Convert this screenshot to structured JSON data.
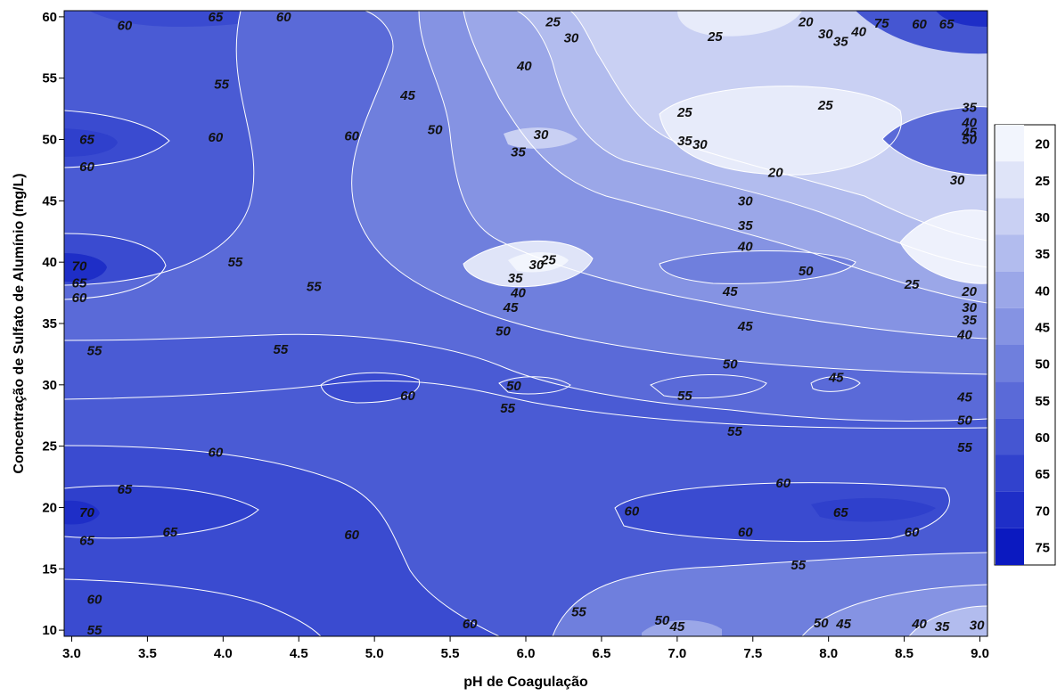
{
  "chart_data": {
    "type": "contour",
    "title": "",
    "xlabel": "pH de Coagulação",
    "ylabel": "Concentração de Sulfato de Alumínio (mg/L)",
    "xlim": [
      2.95,
      9.05
    ],
    "ylim": [
      9.5,
      60.5
    ],
    "xticks": [
      "3.0",
      "3.5",
      "4.0",
      "4.5",
      "5.0",
      "5.5",
      "6.0",
      "6.5",
      "7.0",
      "7.5",
      "8.0",
      "8.5",
      "9.0"
    ],
    "yticks": [
      "10",
      "15",
      "20",
      "25",
      "30",
      "35",
      "40",
      "45",
      "50",
      "55",
      "60"
    ],
    "legend": {
      "position": "right",
      "levels": [
        "20",
        "25",
        "30",
        "35",
        "40",
        "45",
        "50",
        "55",
        "60",
        "65",
        "70",
        "75"
      ],
      "colors": [
        "#f2f5fd",
        "#dfe4f8",
        "#c9d0f3",
        "#b2bcee",
        "#9ba7e8",
        "#8593e3",
        "#6f7fdd",
        "#5a6ad8",
        "#4556d2",
        "#3142cd",
        "#1e2ec7",
        "#0b19c0"
      ]
    },
    "contour_labels": [
      {
        "x": 3.35,
        "y": 59.3,
        "value": "60"
      },
      {
        "x": 3.95,
        "y": 60.0,
        "value": "65"
      },
      {
        "x": 4.4,
        "y": 60.0,
        "value": "60"
      },
      {
        "x": 6.18,
        "y": 59.6,
        "value": "25"
      },
      {
        "x": 6.3,
        "y": 58.3,
        "value": "30"
      },
      {
        "x": 7.25,
        "y": 58.4,
        "value": "25"
      },
      {
        "x": 7.85,
        "y": 59.6,
        "value": "20"
      },
      {
        "x": 7.98,
        "y": 58.6,
        "value": "30"
      },
      {
        "x": 8.08,
        "y": 58.0,
        "value": "35"
      },
      {
        "x": 8.2,
        "y": 58.8,
        "value": "40"
      },
      {
        "x": 8.35,
        "y": 59.5,
        "value": "75"
      },
      {
        "x": 8.6,
        "y": 59.4,
        "value": "60"
      },
      {
        "x": 8.78,
        "y": 59.4,
        "value": "65"
      },
      {
        "x": 5.99,
        "y": 56.0,
        "value": "40"
      },
      {
        "x": 3.99,
        "y": 54.5,
        "value": "55"
      },
      {
        "x": 5.22,
        "y": 53.6,
        "value": "45"
      },
      {
        "x": 5.4,
        "y": 50.8,
        "value": "50"
      },
      {
        "x": 7.05,
        "y": 52.2,
        "value": "25"
      },
      {
        "x": 7.98,
        "y": 52.8,
        "value": "25"
      },
      {
        "x": 8.93,
        "y": 52.6,
        "value": "35"
      },
      {
        "x": 8.93,
        "y": 51.4,
        "value": "40"
      },
      {
        "x": 8.93,
        "y": 50.6,
        "value": "45"
      },
      {
        "x": 8.93,
        "y": 50.0,
        "value": "50"
      },
      {
        "x": 3.1,
        "y": 50.0,
        "value": "65"
      },
      {
        "x": 3.1,
        "y": 47.8,
        "value": "60"
      },
      {
        "x": 3.95,
        "y": 50.2,
        "value": "60"
      },
      {
        "x": 4.85,
        "y": 50.3,
        "value": "60"
      },
      {
        "x": 6.1,
        "y": 50.4,
        "value": "30"
      },
      {
        "x": 5.95,
        "y": 49.0,
        "value": "35"
      },
      {
        "x": 7.05,
        "y": 49.9,
        "value": "35"
      },
      {
        "x": 7.15,
        "y": 49.6,
        "value": "30"
      },
      {
        "x": 7.65,
        "y": 47.3,
        "value": "20"
      },
      {
        "x": 8.85,
        "y": 46.7,
        "value": "30"
      },
      {
        "x": 7.45,
        "y": 45.0,
        "value": "30"
      },
      {
        "x": 7.45,
        "y": 43.0,
        "value": "35"
      },
      {
        "x": 7.45,
        "y": 41.3,
        "value": "40"
      },
      {
        "x": 6.15,
        "y": 40.2,
        "value": "25"
      },
      {
        "x": 6.07,
        "y": 39.8,
        "value": "30"
      },
      {
        "x": 5.93,
        "y": 38.7,
        "value": "35"
      },
      {
        "x": 5.95,
        "y": 37.5,
        "value": "40"
      },
      {
        "x": 5.9,
        "y": 36.3,
        "value": "45"
      },
      {
        "x": 3.05,
        "y": 39.7,
        "value": "70"
      },
      {
        "x": 3.05,
        "y": 38.3,
        "value": "65"
      },
      {
        "x": 3.05,
        "y": 37.1,
        "value": "60"
      },
      {
        "x": 4.08,
        "y": 40.0,
        "value": "55"
      },
      {
        "x": 4.6,
        "y": 38.0,
        "value": "55"
      },
      {
        "x": 7.35,
        "y": 37.6,
        "value": "45"
      },
      {
        "x": 7.85,
        "y": 39.3,
        "value": "50"
      },
      {
        "x": 8.55,
        "y": 38.2,
        "value": "25"
      },
      {
        "x": 8.93,
        "y": 37.6,
        "value": "20"
      },
      {
        "x": 8.93,
        "y": 36.3,
        "value": "30"
      },
      {
        "x": 8.93,
        "y": 35.3,
        "value": "35"
      },
      {
        "x": 5.85,
        "y": 34.4,
        "value": "50"
      },
      {
        "x": 7.45,
        "y": 34.8,
        "value": "45"
      },
      {
        "x": 8.9,
        "y": 34.1,
        "value": "40"
      },
      {
        "x": 3.15,
        "y": 32.8,
        "value": "55"
      },
      {
        "x": 4.38,
        "y": 32.9,
        "value": "55"
      },
      {
        "x": 7.35,
        "y": 31.7,
        "value": "50"
      },
      {
        "x": 8.05,
        "y": 30.6,
        "value": "45"
      },
      {
        "x": 5.92,
        "y": 29.9,
        "value": "50"
      },
      {
        "x": 5.22,
        "y": 29.1,
        "value": "60"
      },
      {
        "x": 7.05,
        "y": 29.1,
        "value": "55"
      },
      {
        "x": 5.88,
        "y": 28.1,
        "value": "55"
      },
      {
        "x": 8.9,
        "y": 29.0,
        "value": "45"
      },
      {
        "x": 8.9,
        "y": 27.1,
        "value": "50"
      },
      {
        "x": 7.38,
        "y": 26.2,
        "value": "55"
      },
      {
        "x": 8.9,
        "y": 24.9,
        "value": "55"
      },
      {
        "x": 3.95,
        "y": 24.5,
        "value": "60"
      },
      {
        "x": 3.35,
        "y": 21.5,
        "value": "65"
      },
      {
        "x": 3.1,
        "y": 19.6,
        "value": "70"
      },
      {
        "x": 7.7,
        "y": 22.0,
        "value": "60"
      },
      {
        "x": 6.7,
        "y": 19.7,
        "value": "60"
      },
      {
        "x": 8.08,
        "y": 19.6,
        "value": "65"
      },
      {
        "x": 4.85,
        "y": 17.8,
        "value": "60"
      },
      {
        "x": 3.65,
        "y": 18.0,
        "value": "65"
      },
      {
        "x": 3.1,
        "y": 17.3,
        "value": "65"
      },
      {
        "x": 7.45,
        "y": 18.0,
        "value": "60"
      },
      {
        "x": 8.55,
        "y": 18.0,
        "value": "60"
      },
      {
        "x": 7.8,
        "y": 15.3,
        "value": "55"
      },
      {
        "x": 3.15,
        "y": 12.5,
        "value": "60"
      },
      {
        "x": 6.35,
        "y": 11.5,
        "value": "55"
      },
      {
        "x": 5.63,
        "y": 10.5,
        "value": "60"
      },
      {
        "x": 6.9,
        "y": 10.8,
        "value": "50"
      },
      {
        "x": 7.95,
        "y": 10.6,
        "value": "50"
      },
      {
        "x": 8.1,
        "y": 10.5,
        "value": "45"
      },
      {
        "x": 8.6,
        "y": 10.5,
        "value": "40"
      },
      {
        "x": 8.75,
        "y": 10.3,
        "value": "35"
      },
      {
        "x": 7.0,
        "y": 10.3,
        "value": "45"
      },
      {
        "x": 8.98,
        "y": 10.4,
        "value": "30"
      },
      {
        "x": 3.15,
        "y": 10.0,
        "value": "55"
      }
    ]
  }
}
